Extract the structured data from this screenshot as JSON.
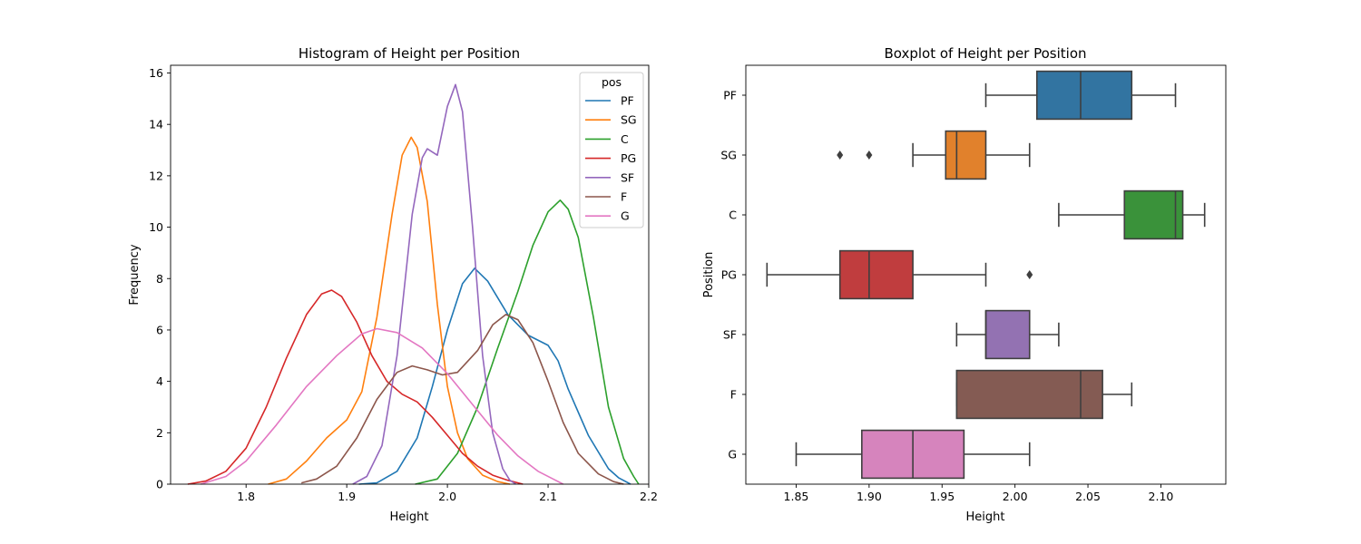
{
  "figure": {
    "background": "#ffffff"
  },
  "chart_data": [
    {
      "type": "line",
      "subtype": "kde",
      "title": "Histogram of Height per Position",
      "xlabel": "Height",
      "ylabel": "Frequency",
      "xlim": [
        1.725,
        2.2
      ],
      "ylim": [
        0,
        16.3
      ],
      "xticks": [
        1.8,
        1.9,
        2.0,
        2.1,
        2.2
      ],
      "xtick_labels": [
        "1.8",
        "1.9",
        "2.0",
        "2.1",
        "2.2"
      ],
      "yticks": [
        0,
        2,
        4,
        6,
        8,
        10,
        12,
        14,
        16
      ],
      "ytick_labels": [
        "0",
        "2",
        "4",
        "6",
        "8",
        "10",
        "12",
        "14",
        "16"
      ],
      "legend": {
        "title": "pos",
        "placement": "top-right"
      },
      "series": [
        {
          "name": "PF",
          "color": "#1f77b4",
          "points": [
            [
              1.912,
              0
            ],
            [
              1.93,
              0.05
            ],
            [
              1.95,
              0.5
            ],
            [
              1.97,
              1.8
            ],
            [
              1.985,
              3.8
            ],
            [
              2.0,
              6.0
            ],
            [
              2.015,
              7.8
            ],
            [
              2.027,
              8.4
            ],
            [
              2.04,
              7.9
            ],
            [
              2.06,
              6.6
            ],
            [
              2.08,
              5.8
            ],
            [
              2.1,
              5.4
            ],
            [
              2.11,
              4.8
            ],
            [
              2.12,
              3.7
            ],
            [
              2.14,
              1.9
            ],
            [
              2.16,
              0.6
            ],
            [
              2.17,
              0.25
            ],
            [
              2.182,
              0
            ]
          ]
        },
        {
          "name": "SG",
          "color": "#ff7f0e",
          "points": [
            [
              1.822,
              0
            ],
            [
              1.84,
              0.2
            ],
            [
              1.86,
              0.9
            ],
            [
              1.88,
              1.8
            ],
            [
              1.9,
              2.5
            ],
            [
              1.915,
              3.6
            ],
            [
              1.93,
              6.5
            ],
            [
              1.945,
              10.5
            ],
            [
              1.955,
              12.8
            ],
            [
              1.964,
              13.5
            ],
            [
              1.97,
              13.1
            ],
            [
              1.98,
              11.0
            ],
            [
              1.99,
              7.0
            ],
            [
              2.0,
              3.8
            ],
            [
              2.01,
              2.0
            ],
            [
              2.02,
              1.0
            ],
            [
              2.035,
              0.35
            ],
            [
              2.05,
              0.1
            ],
            [
              2.062,
              0
            ]
          ]
        },
        {
          "name": "C",
          "color": "#2ca02c",
          "points": [
            [
              1.968,
              0
            ],
            [
              1.99,
              0.2
            ],
            [
              2.01,
              1.2
            ],
            [
              2.03,
              3.0
            ],
            [
              2.05,
              5.3
            ],
            [
              2.07,
              7.5
            ],
            [
              2.085,
              9.3
            ],
            [
              2.1,
              10.6
            ],
            [
              2.112,
              11.05
            ],
            [
              2.12,
              10.7
            ],
            [
              2.13,
              9.6
            ],
            [
              2.145,
              6.5
            ],
            [
              2.16,
              3.0
            ],
            [
              2.175,
              1.0
            ],
            [
              2.185,
              0.3
            ],
            [
              2.19,
              0
            ]
          ]
        },
        {
          "name": "PG",
          "color": "#d62728",
          "points": [
            [
              1.742,
              0
            ],
            [
              1.76,
              0.12
            ],
            [
              1.78,
              0.5
            ],
            [
              1.8,
              1.4
            ],
            [
              1.82,
              3.0
            ],
            [
              1.84,
              4.9
            ],
            [
              1.86,
              6.6
            ],
            [
              1.875,
              7.4
            ],
            [
              1.885,
              7.55
            ],
            [
              1.895,
              7.3
            ],
            [
              1.91,
              6.3
            ],
            [
              1.925,
              5.0
            ],
            [
              1.94,
              4.0
            ],
            [
              1.955,
              3.5
            ],
            [
              1.97,
              3.2
            ],
            [
              1.985,
              2.6
            ],
            [
              2.0,
              1.9
            ],
            [
              2.015,
              1.2
            ],
            [
              2.03,
              0.7
            ],
            [
              2.045,
              0.35
            ],
            [
              2.06,
              0.15
            ],
            [
              2.075,
              0
            ]
          ]
        },
        {
          "name": "SF",
          "color": "#9467bd",
          "points": [
            [
              1.906,
              0
            ],
            [
              1.92,
              0.3
            ],
            [
              1.935,
              1.5
            ],
            [
              1.95,
              5.0
            ],
            [
              1.965,
              10.5
            ],
            [
              1.975,
              12.7
            ],
            [
              1.98,
              13.05
            ],
            [
              1.99,
              12.8
            ],
            [
              2.0,
              14.7
            ],
            [
              2.008,
              15.55
            ],
            [
              2.015,
              14.5
            ],
            [
              2.025,
              10.0
            ],
            [
              2.035,
              5.0
            ],
            [
              2.045,
              2.0
            ],
            [
              2.055,
              0.6
            ],
            [
              2.062,
              0.15
            ],
            [
              2.068,
              0
            ]
          ]
        },
        {
          "name": "F",
          "color": "#8c564b",
          "points": [
            [
              1.855,
              0.05
            ],
            [
              1.87,
              0.2
            ],
            [
              1.89,
              0.7
            ],
            [
              1.91,
              1.8
            ],
            [
              1.93,
              3.3
            ],
            [
              1.95,
              4.35
            ],
            [
              1.965,
              4.6
            ],
            [
              1.98,
              4.45
            ],
            [
              1.995,
              4.25
            ],
            [
              2.01,
              4.35
            ],
            [
              2.03,
              5.2
            ],
            [
              2.045,
              6.2
            ],
            [
              2.058,
              6.6
            ],
            [
              2.07,
              6.4
            ],
            [
              2.085,
              5.5
            ],
            [
              2.1,
              4.0
            ],
            [
              2.115,
              2.4
            ],
            [
              2.13,
              1.2
            ],
            [
              2.15,
              0.4
            ],
            [
              2.165,
              0.1
            ],
            [
              2.175,
              0
            ]
          ]
        },
        {
          "name": "G",
          "color": "#e377c2",
          "points": [
            [
              1.755,
              0
            ],
            [
              1.78,
              0.3
            ],
            [
              1.8,
              0.9
            ],
            [
              1.83,
              2.3
            ],
            [
              1.86,
              3.8
            ],
            [
              1.89,
              5.0
            ],
            [
              1.915,
              5.85
            ],
            [
              1.93,
              6.05
            ],
            [
              1.95,
              5.9
            ],
            [
              1.975,
              5.3
            ],
            [
              2.0,
              4.3
            ],
            [
              2.025,
              3.1
            ],
            [
              2.05,
              1.9
            ],
            [
              2.07,
              1.1
            ],
            [
              2.09,
              0.5
            ],
            [
              2.105,
              0.2
            ],
            [
              2.115,
              0
            ]
          ]
        }
      ]
    },
    {
      "type": "box",
      "orientation": "horizontal",
      "title": "Boxplot of Height per Position",
      "xlabel": "Height",
      "ylabel": "Position",
      "xlim": [
        1.8155,
        2.1445
      ],
      "xticks": [
        1.85,
        1.9,
        1.95,
        2.0,
        2.05,
        2.1
      ],
      "xtick_labels": [
        "1.85",
        "1.90",
        "1.95",
        "2.00",
        "2.05",
        "2.10"
      ],
      "categories": [
        "PF",
        "SG",
        "C",
        "PG",
        "SF",
        "F",
        "G"
      ],
      "boxes": [
        {
          "name": "PF",
          "color": "#3274a1",
          "whisker_low": 1.98,
          "q1": 2.015,
          "median": 2.045,
          "q3": 2.08,
          "whisker_high": 2.11,
          "outliers": []
        },
        {
          "name": "SG",
          "color": "#e1812c",
          "whisker_low": 1.93,
          "q1": 1.9525,
          "median": 1.96,
          "q3": 1.98,
          "whisker_high": 2.01,
          "outliers": [
            1.88,
            1.9
          ]
        },
        {
          "name": "C",
          "color": "#3a923a",
          "whisker_low": 2.03,
          "q1": 2.075,
          "median": 2.11,
          "q3": 2.115,
          "whisker_high": 2.13,
          "outliers": []
        },
        {
          "name": "PG",
          "color": "#c03d3e",
          "whisker_low": 1.83,
          "q1": 1.88,
          "median": 1.9,
          "q3": 1.93,
          "whisker_high": 1.98,
          "outliers": [
            2.01
          ]
        },
        {
          "name": "SF",
          "color": "#9372b2",
          "whisker_low": 1.96,
          "q1": 1.98,
          "median": 1.98,
          "q3": 2.01,
          "whisker_high": 2.03,
          "outliers": []
        },
        {
          "name": "F",
          "color": "#845b53",
          "whisker_low": 1.96,
          "q1": 1.96,
          "median": 2.045,
          "q3": 2.06,
          "whisker_high": 2.08,
          "outliers": []
        },
        {
          "name": "G",
          "color": "#d684bd",
          "whisker_low": 1.85,
          "q1": 1.895,
          "median": 1.93,
          "q3": 1.965,
          "whisker_high": 2.01,
          "outliers": []
        }
      ]
    }
  ]
}
